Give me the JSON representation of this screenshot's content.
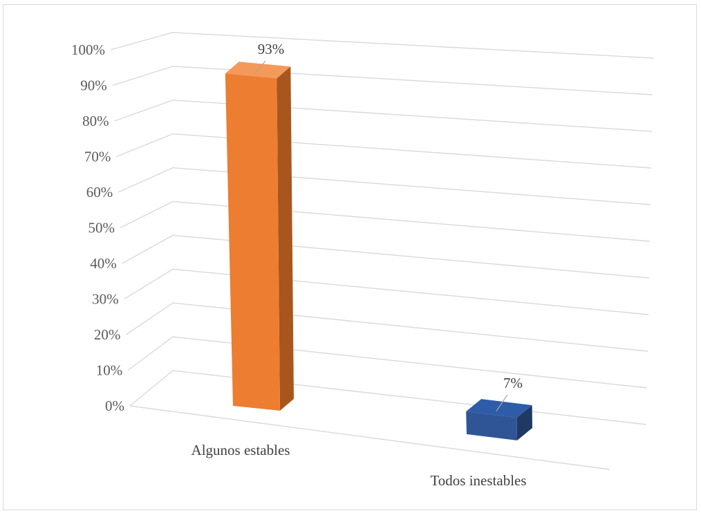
{
  "chart_data": {
    "type": "bar",
    "style": "3d-column",
    "categories": [
      "Algunos estables",
      "Todos inestables"
    ],
    "values": [
      93,
      7
    ],
    "value_labels": [
      "93%",
      "7%"
    ],
    "colors": {
      "Algunos estables": {
        "front": "#ED7D31",
        "side": "#A9561E",
        "top": "#F4995A"
      },
      "Todos inestables": {
        "front": "#2F5597",
        "side": "#203864",
        "top": "#2E5CA8"
      }
    },
    "title": "",
    "xlabel": "",
    "ylabel": "",
    "ylim": [
      0,
      100
    ],
    "y_ticks": [
      0,
      10,
      20,
      30,
      40,
      50,
      60,
      70,
      80,
      90,
      100
    ],
    "y_tick_labels": [
      "0%",
      "10%",
      "20%",
      "30%",
      "40%",
      "50%",
      "60%",
      "70%",
      "80%",
      "90%",
      "100%"
    ],
    "grid": true,
    "legend": "none"
  }
}
